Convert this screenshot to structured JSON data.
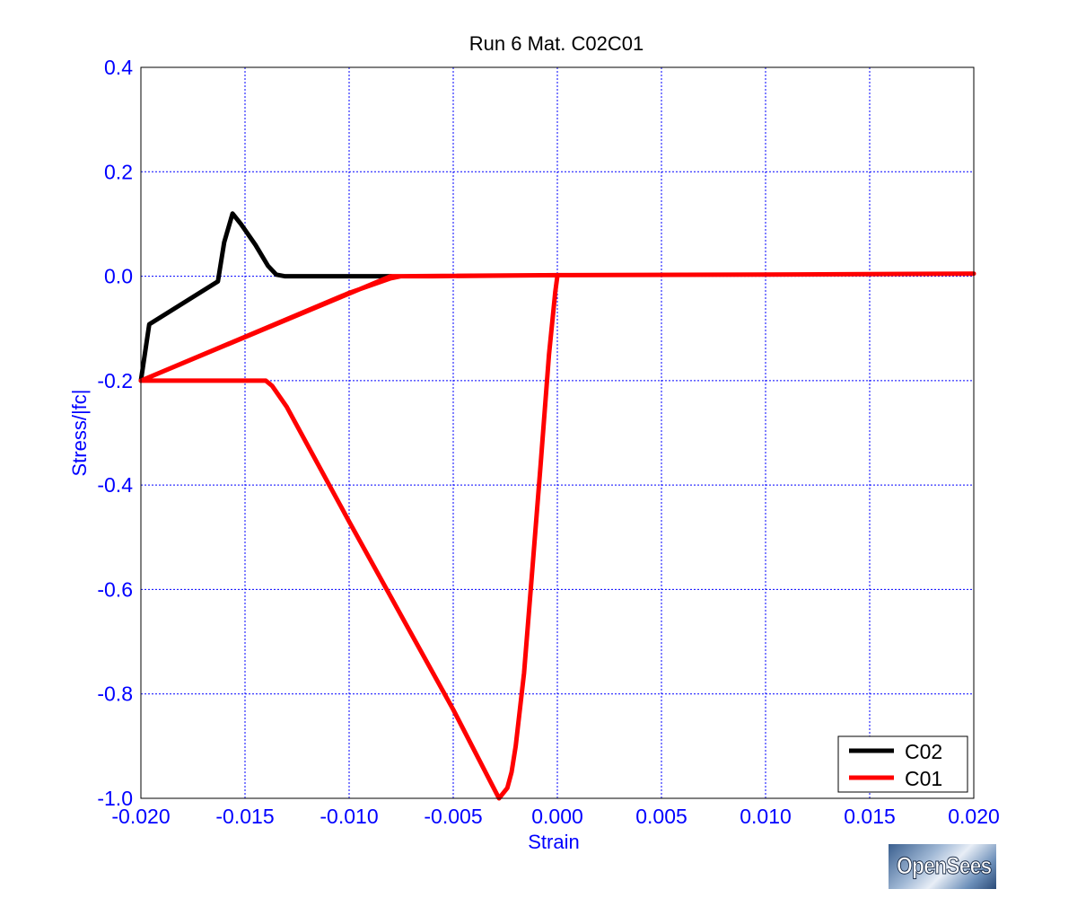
{
  "chart_data": {
    "type": "line",
    "title": "Run 6   Mat. C02C01",
    "xlabel": "Strain",
    "ylabel": "Stress/|fc|",
    "xlim": [
      -0.02,
      0.02
    ],
    "ylim": [
      -1.0,
      0.4
    ],
    "xticks": [
      "-0.020",
      "-0.015",
      "-0.010",
      "-0.005",
      "0.000",
      "0.005",
      "0.010",
      "0.015",
      "0.020"
    ],
    "yticks": [
      "0.4",
      "0.2",
      "0.0",
      "-0.2",
      "-0.4",
      "-0.6",
      "-0.8",
      "-1.0"
    ],
    "grid": true,
    "legend_position": "bottom-right",
    "series": [
      {
        "name": "C02",
        "color": "#000000",
        "x": [
          -0.02,
          -0.0196,
          -0.0163,
          -0.016,
          -0.0156,
          -0.0152,
          -0.0145,
          -0.0139,
          -0.0135,
          -0.0131,
          -0.01,
          -0.008
        ],
        "y": [
          -0.2,
          -0.092,
          -0.01,
          0.065,
          0.12,
          0.1,
          0.06,
          0.02,
          0.003,
          0.0,
          0.0,
          0.0
        ]
      },
      {
        "name": "C01",
        "color": "#ff0000",
        "x": [
          -0.02,
          -0.014,
          -0.0137,
          -0.013,
          -0.01,
          -0.005,
          -0.0028,
          -0.0026,
          -0.0024,
          -0.0022,
          -0.002,
          -0.0016,
          -0.0012,
          -0.0008,
          -0.0004,
          -0.0001,
          0.0,
          0.0,
          -0.006,
          -0.008,
          -0.02,
          -0.01,
          -0.008,
          -0.0075,
          0.0,
          0.01,
          0.02
        ],
        "y": [
          -0.2,
          -0.2,
          -0.21,
          -0.25,
          -0.47,
          -0.83,
          -1.0,
          -0.99,
          -0.98,
          -0.95,
          -0.9,
          -0.76,
          -0.56,
          -0.36,
          -0.15,
          -0.03,
          0.0,
          0.002,
          0.0,
          0.0,
          -0.2,
          -0.032,
          -0.004,
          0.0,
          0.002,
          0.003,
          0.005
        ]
      }
    ]
  },
  "logo": {
    "text": "OpenSees"
  }
}
